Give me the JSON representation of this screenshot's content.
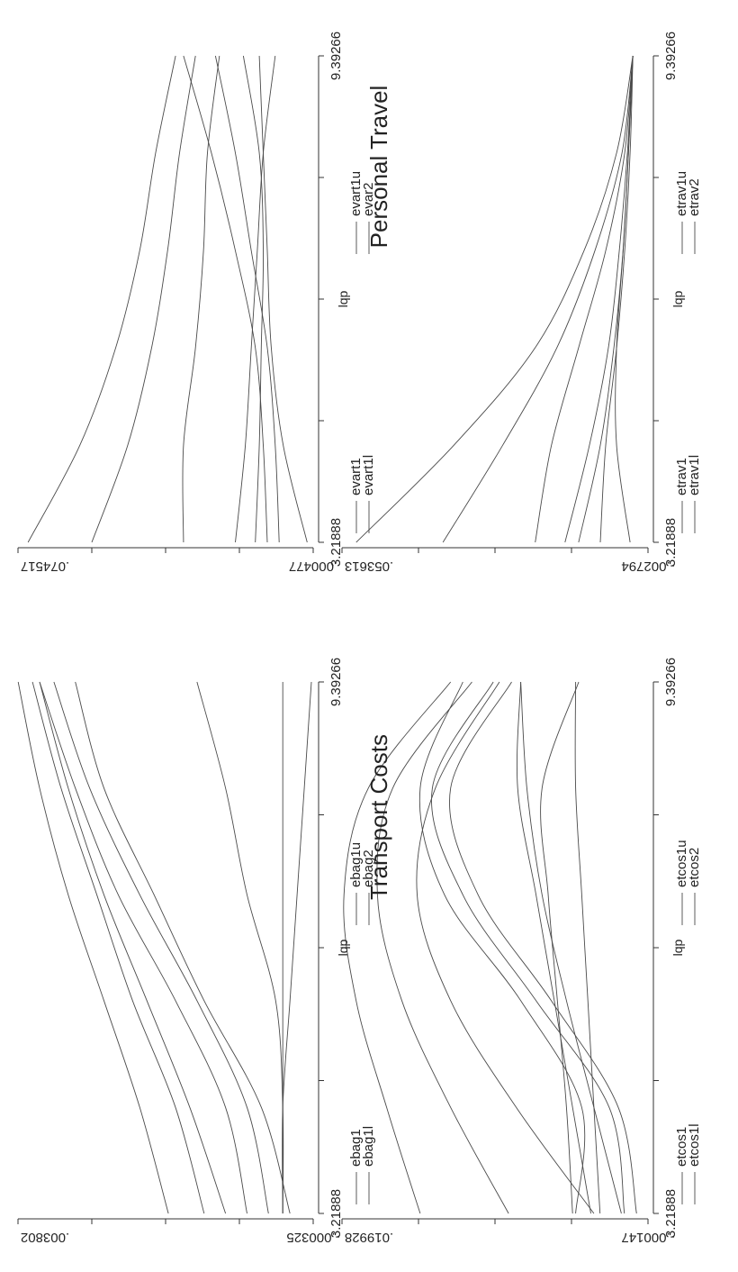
{
  "figure": {
    "rotation": "page rotated 90 degrees counter-clockwise (landscape figure printed sideways)"
  },
  "captions": {
    "transport": "Transport Costs",
    "personal": "Personal Travel"
  },
  "chart_data": [
    {
      "id": "etcos",
      "type": "line",
      "xlabel": "lqp",
      "ylabel": "",
      "xlim": [
        3.21888,
        9.39266
      ],
      "ylim": [
        -0.000147,
        0.019928
      ],
      "x_tick_labels": [
        "3.21888",
        "9.39266"
      ],
      "y_tick_labels": [
        "-.000147",
        ".019928"
      ],
      "legend": [
        "etcos1",
        "etcos1l",
        "etcos1u",
        "etcos2"
      ],
      "legend_position": "top",
      "x": [
        3.21888,
        4.45,
        5.69,
        6.92,
        8.16,
        9.39266
      ],
      "series": [
        {
          "name": "etcos1",
          "values": [
            0.0148,
            0.017,
            0.019,
            0.0198,
            0.0182,
            0.0128
          ]
        },
        {
          "name": "etcos1l",
          "values": [
            0.009,
            0.0128,
            0.016,
            0.0176,
            0.0166,
            0.0114
          ]
        },
        {
          "name": "etcos1u",
          "values": [
            0.0034,
            0.0085,
            0.0128,
            0.015,
            0.0138,
            0.0096
          ]
        },
        {
          "name": "etcos2",
          "values": [
            0.0046,
            0.0042,
            0.0082,
            0.0132,
            0.0148,
            0.012
          ]
        },
        {
          "values": [
            0.0014,
            0.0024,
            0.0072,
            0.012,
            0.014,
            0.01
          ]
        },
        {
          "values": [
            0.0006,
            0.0018,
            0.0062,
            0.011,
            0.0128,
            0.0088
          ]
        },
        {
          "values": [
            0.0036,
            0.0048,
            0.006,
            0.0072,
            0.0084,
            0.0082
          ]
        },
        {
          "values": [
            0.0016,
            0.0034,
            0.0052,
            0.0068,
            0.0078,
            0.0082
          ]
        },
        {
          "values": [
            0.0048,
            0.0052,
            0.0058,
            0.0064,
            0.0068,
            0.0044
          ]
        },
        {
          "values": [
            0.003,
            0.0034,
            0.0038,
            0.0042,
            0.0046,
            0.0046
          ]
        }
      ]
    },
    {
      "id": "etrav",
      "type": "line",
      "xlabel": "lqp",
      "ylabel": "",
      "xlim": [
        3.21888,
        9.39266
      ],
      "ylim": [
        -0.002794,
        0.053613
      ],
      "x_tick_labels": [
        "3.21888",
        "9.39266"
      ],
      "y_tick_labels": [
        "-.002794",
        ".053613"
      ],
      "legend": [
        "etrav1",
        "etrav1l",
        "etrav1u",
        "etrav2"
      ],
      "legend_position": "top",
      "x": [
        3.21888,
        4.45,
        5.69,
        6.92,
        8.16,
        9.39266
      ],
      "series": [
        {
          "name": "etrav1",
          "values": [
            0.051,
            0.033,
            0.018,
            0.009,
            0.003,
            0.0
          ]
        },
        {
          "name": "etrav1l",
          "values": [
            0.035,
            0.024,
            0.014,
            0.007,
            0.002,
            0.0
          ]
        },
        {
          "name": "etrav1u",
          "values": [
            0.018,
            0.015,
            0.01,
            0.005,
            0.0015,
            0.0
          ]
        },
        {
          "name": "etrav2",
          "values": [
            0.0125,
            0.008,
            0.0045,
            0.0025,
            0.001,
            0.0
          ]
        },
        {
          "values": [
            0.01,
            0.006,
            0.0035,
            0.0018,
            0.0008,
            0.0
          ]
        },
        {
          "values": [
            0.006,
            0.005,
            0.003,
            0.0015,
            0.0005,
            0.0
          ]
        },
        {
          "values": [
            0.0005,
            0.003,
            0.003,
            0.0018,
            0.0008,
            0.0
          ]
        }
      ]
    },
    {
      "id": "ebag",
      "type": "line",
      "xlabel": "lqp",
      "ylabel": "",
      "xlim": [
        3.21888,
        9.39266
      ],
      "ylim": [
        -0.000325,
        0.003802
      ],
      "x_tick_labels": [
        "3.21888",
        "9.39266"
      ],
      "y_tick_labels": [
        "-.000325",
        ".003802"
      ],
      "legend": [
        "ebag1",
        "ebag1l",
        "ebag1u",
        "ebag2"
      ],
      "legend_position": "top",
      "x": [
        3.21888,
        4.45,
        5.69,
        6.92,
        8.16,
        9.39266
      ],
      "series": [
        {
          "name": "ebag1",
          "values": [
            0.0017,
            0.0021,
            0.0026,
            0.0031,
            0.0035,
            0.0038
          ]
        },
        {
          "name": "ebag1l",
          "values": [
            0.0012,
            0.0016,
            0.0022,
            0.0027,
            0.0032,
            0.0036
          ]
        },
        {
          "name": "ebag1u",
          "values": [
            0.0009,
            0.0014,
            0.002,
            0.0026,
            0.0031,
            0.0035
          ]
        },
        {
          "name": "ebag2",
          "values": [
            0.0006,
            0.0009,
            0.0016,
            0.0024,
            0.003,
            0.0035
          ]
        },
        {
          "values": [
            0.0003,
            0.0006,
            0.0013,
            0.0021,
            0.0028,
            0.0033
          ]
        },
        {
          "values": [
            0.0,
            0.0004,
            0.0012,
            0.0019,
            0.0026,
            0.003
          ]
        },
        {
          "values": [
            0.0001,
            0.0001,
            0.0002,
            0.0006,
            0.0009,
            0.0013
          ]
        },
        {
          "values": [
            0.0001,
            0.0001,
            0.0001,
            0.0001,
            0.0001,
            0.0001
          ]
        },
        {
          "values": [
            0.0001,
            0.0001,
            0.0,
            -0.0001,
            -0.0002,
            -0.0003
          ]
        }
      ]
    },
    {
      "id": "evart",
      "type": "line",
      "xlabel": "lqp",
      "ylabel": "",
      "xlim": [
        3.21888,
        9.39266
      ],
      "ylim": [
        0.000477,
        0.074517
      ],
      "x_tick_labels": [
        "3.21888",
        "9.39266"
      ],
      "y_tick_labels": [
        ".000477",
        ".074517"
      ],
      "legend": [
        "evart1",
        "evart1l",
        "evart1u",
        "evar2"
      ],
      "legend_position": "top",
      "x": [
        3.21888,
        4.45,
        5.69,
        6.92,
        8.16,
        9.39266
      ],
      "series": [
        {
          "name": "evart1",
          "values": [
            0.072,
            0.059,
            0.05,
            0.044,
            0.04,
            0.035
          ]
        },
        {
          "name": "evart1l",
          "values": [
            0.056,
            0.047,
            0.041,
            0.037,
            0.034,
            0.03
          ]
        },
        {
          "name": "evart1u",
          "values": [
            0.033,
            0.033,
            0.03,
            0.028,
            0.027,
            0.024
          ]
        },
        {
          "name": "evar2",
          "values": [
            0.02,
            0.0175,
            0.016,
            0.0145,
            0.013,
            0.01
          ]
        },
        {
          "values": [
            0.012,
            0.013,
            0.015,
            0.02,
            0.026,
            0.033
          ]
        },
        {
          "values": [
            0.009,
            0.01,
            0.012,
            0.016,
            0.02,
            0.025
          ]
        },
        {
          "values": [
            0.015,
            0.014,
            0.0135,
            0.013,
            0.014,
            0.018
          ]
        },
        {
          "values": [
            0.002,
            0.008,
            0.011,
            0.012,
            0.013,
            0.014
          ]
        }
      ]
    }
  ]
}
